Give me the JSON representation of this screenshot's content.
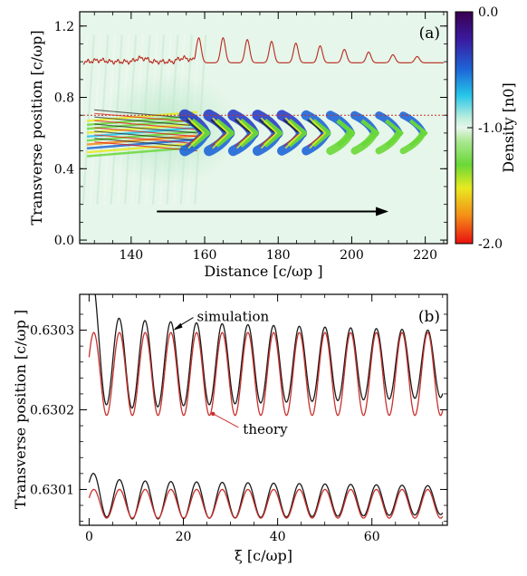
{
  "chart_data": [
    {
      "panel_label": "(a)",
      "type": "heatmap",
      "xlabel": "Distance [c/ωp ]",
      "ylabel": "Transverse position [c/ωp]",
      "xlim": [
        126,
        226
      ],
      "ylim": [
        -0.02,
        1.28
      ],
      "x_ticks": [
        "140",
        "160",
        "180",
        "200",
        "220"
      ],
      "x_tick_values": [
        140,
        160,
        180,
        200,
        220
      ],
      "y_ticks": [
        "0.0",
        "0.4",
        "0.8",
        "1.2"
      ],
      "y_tick_values": [
        0.0,
        0.4,
        0.8,
        1.2
      ],
      "colorbar": {
        "label": "Density [n0]",
        "ticks": [
          "0.0",
          "-1.0",
          "-2.0"
        ],
        "tick_values": [
          0.0,
          -1.0,
          -2.0
        ],
        "range": [
          -2.0,
          0.0
        ]
      },
      "reference_line_y": 0.7,
      "arrow": {
        "x_start": 147,
        "x_end": 210,
        "y": 0.16
      },
      "trace": {
        "baseline_y": 1.0,
        "peaks_x": [
          158.4,
          165,
          171.6,
          178.2,
          184.8,
          191.4,
          198,
          204.6,
          211.2,
          217.8
        ],
        "peaks_height": [
          0.14,
          0.14,
          0.13,
          0.12,
          0.11,
          0.095,
          0.075,
          0.06,
          0.045,
          0.035
        ]
      },
      "chevrons": [
        {
          "x": 160,
          "amp": 1.0
        },
        {
          "x": 166.6,
          "amp": 0.98
        },
        {
          "x": 173.2,
          "amp": 0.96
        },
        {
          "x": 179.8,
          "amp": 0.92
        },
        {
          "x": 186.4,
          "amp": 0.86
        },
        {
          "x": 193.0,
          "amp": 0.78
        },
        {
          "x": 199.6,
          "amp": 0.7
        },
        {
          "x": 206.2,
          "amp": 0.62
        },
        {
          "x": 212.8,
          "amp": 0.55
        },
        {
          "x": 219.4,
          "amp": 0.5
        }
      ]
    },
    {
      "panel_label": "(b)",
      "type": "line",
      "xlabel": "ξ [c/ωp]",
      "ylabel": "Transverse position [c/ωp ]",
      "xlim": [
        -2,
        76
      ],
      "ylim": [
        0.630055,
        0.630345
      ],
      "x_ticks": [
        "0",
        "20",
        "40",
        "60"
      ],
      "x_tick_values": [
        0,
        20,
        40,
        60
      ],
      "y_ticks": [
        "0.6301",
        "0.6302",
        "0.6303"
      ],
      "y_tick_values": [
        0.6301,
        0.6302,
        0.6303
      ],
      "period": 5.45,
      "series": [
        {
          "name": "simulation",
          "color": "#1a1a1a",
          "group": "upper",
          "center": 0.630255,
          "amp_start": 5.5e-05,
          "amp_end": 4.2e-05,
          "offset": 2.5e-06
        },
        {
          "name": "theory",
          "color": "#c8302c",
          "group": "upper",
          "center": 0.630245,
          "amp_start": 5.2e-05,
          "amp_end": 5.2e-05,
          "offset": 0.0
        },
        {
          "name": "",
          "color": "#1a1a1a",
          "group": "lower",
          "center": 0.630085,
          "amp_start": 2.5e-05,
          "amp_end": 1.8e-05,
          "offset": 1.5e-06
        },
        {
          "name": "",
          "color": "#c8302c",
          "group": "lower",
          "center": 0.630082,
          "amp_start": 1.8e-05,
          "amp_end": 1.8e-05,
          "offset": 0.0
        }
      ],
      "annotations": [
        {
          "text": "simulation",
          "target_x": 17.5,
          "target_y": 0.6303,
          "color": "#000000"
        },
        {
          "text": "theory",
          "target_x": 26.3,
          "target_y": 0.630195,
          "color": "#c8302c"
        }
      ]
    }
  ]
}
